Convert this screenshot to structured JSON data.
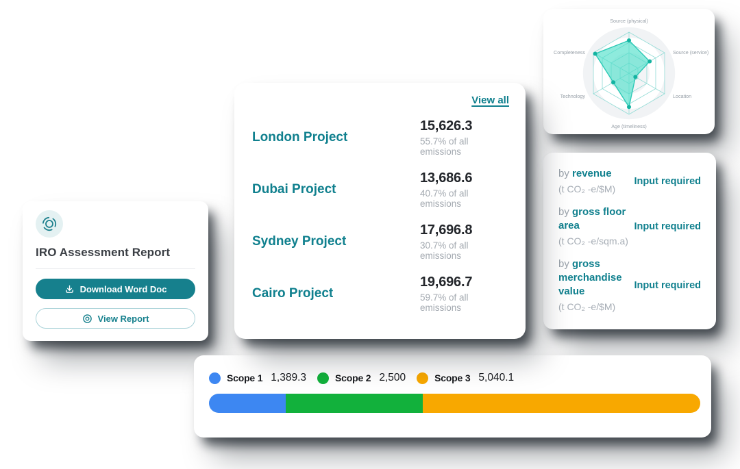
{
  "colors": {
    "teal": "#10808e",
    "teal_button": "#16808d",
    "dark_text": "#23262b",
    "gray_text": "#a4aab1"
  },
  "report_card": {
    "title": "IRO Assessment Report",
    "download_label": "Download Word Doc",
    "view_label": "View Report"
  },
  "projects_card": {
    "view_all": "View all",
    "rows": [
      {
        "name": "London Project",
        "value": "15,626.3",
        "share": "55.7% of all emissions"
      },
      {
        "name": "Dubai Project",
        "value": "13,686.6",
        "share": "40.7% of all emissions"
      },
      {
        "name": "Sydney Project",
        "value": "17,696.8",
        "share": "30.7% of all emissions"
      },
      {
        "name": "Cairo Project",
        "value": "19,696.7",
        "share": "59.7% of all emissions"
      }
    ]
  },
  "intensity_card": {
    "rows": [
      {
        "prefix": "by",
        "metric": "revenue",
        "unit": "(t CO₂ -e/$M)",
        "action": "Input required"
      },
      {
        "prefix": "by",
        "metric": "gross floor area",
        "unit": "(t CO₂ -e/sqm.a)",
        "action": "Input required"
      },
      {
        "prefix": "by",
        "metric": "gross merchandise value",
        "unit": "(t CO₂ -e/$M)",
        "action": "Input required"
      }
    ]
  },
  "chart_data": [
    {
      "type": "radar",
      "axes": [
        "Source (physical)",
        "Source (service)",
        "Location",
        "Age (timeliness)",
        "Technology",
        "Completeness"
      ],
      "values": [
        80,
        58,
        18,
        82,
        44,
        95
      ],
      "value_range": [
        0,
        100
      ],
      "grid_rings": [
        0.25,
        0.5,
        0.75,
        1
      ],
      "grid_color": "#93dcd6",
      "fill_color": "rgba(72,222,200,0.62)",
      "stroke_color": "#2ec9b6",
      "point_color": "#14b3a1",
      "label_color": "#98a0a8"
    },
    {
      "type": "stacked_bar",
      "series": [
        {
          "name": "Scope 1",
          "value": 1389.3,
          "display": "1,389.3",
          "color": "#3d87f2"
        },
        {
          "name": "Scope 2",
          "value": 2500,
          "display": "2,500",
          "color": "#12b13c"
        },
        {
          "name": "Scope 3",
          "value": 5040.1,
          "display": "5,040.1",
          "color": "#f8a800"
        }
      ]
    }
  ]
}
